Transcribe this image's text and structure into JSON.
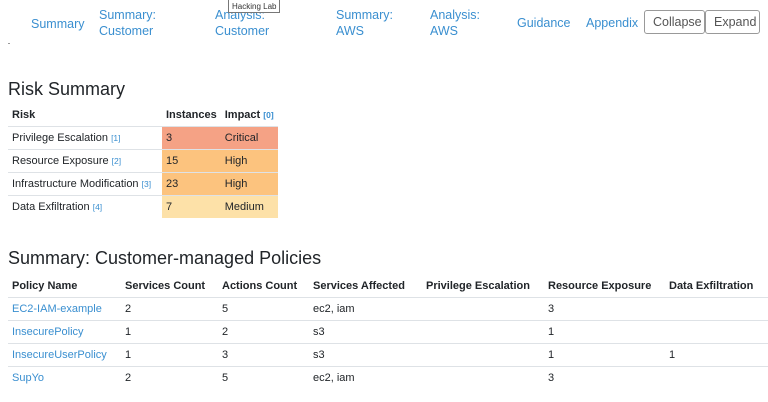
{
  "tooltip": "Hacking Lab",
  "nav": {
    "summary": "Summary",
    "summary_customer_l1": "Summary:",
    "summary_customer_l2": "Customer",
    "analysis_customer_l1": "Analysis:",
    "analysis_customer_l2": "Customer",
    "summary_aws_l1": "Summary:",
    "summary_aws_l2": "AWS",
    "analysis_aws_l1": "Analysis:",
    "analysis_aws_l2": "AWS",
    "guidance": "Guidance",
    "appendix": "Appendix",
    "collapse": "Collapse",
    "expand": "Expand"
  },
  "risk": {
    "title": "Risk Summary",
    "headers": {
      "risk": "Risk",
      "instances": "Instances",
      "impact": "Impact",
      "impact_ref": "[0]"
    },
    "rows": [
      {
        "label": "Privilege Escalation",
        "ref": "[1]",
        "instances": "3",
        "impact": "Critical"
      },
      {
        "label": "Resource Exposure",
        "ref": "[2]",
        "instances": "15",
        "impact": "High"
      },
      {
        "label": "Infrastructure Modification",
        "ref": "[3]",
        "instances": "23",
        "impact": "High"
      },
      {
        "label": "Data Exfiltration",
        "ref": "[4]",
        "instances": "7",
        "impact": "Medium"
      }
    ]
  },
  "policies": {
    "title": "Summary: Customer-managed Policies",
    "headers": {
      "name": "Policy Name",
      "services_count": "Services Count",
      "actions_count": "Actions Count",
      "services_affected": "Services Affected",
      "privilege_escalation": "Privilege Escalation",
      "resource_exposure": "Resource Exposure",
      "data_exfiltration": "Data Exfiltration"
    },
    "rows": [
      {
        "name": "EC2-IAM-example",
        "services_count": "2",
        "actions_count": "5",
        "services_affected": "ec2, iam",
        "privilege_escalation": "",
        "resource_exposure": "3",
        "data_exfiltration": ""
      },
      {
        "name": "InsecurePolicy",
        "services_count": "1",
        "actions_count": "2",
        "services_affected": "s3",
        "privilege_escalation": "",
        "resource_exposure": "1",
        "data_exfiltration": ""
      },
      {
        "name": "InsecureUserPolicy",
        "services_count": "1",
        "actions_count": "3",
        "services_affected": "s3",
        "privilege_escalation": "",
        "resource_exposure": "1",
        "data_exfiltration": "1"
      },
      {
        "name": "SupYo",
        "services_count": "2",
        "actions_count": "5",
        "services_affected": "ec2, iam",
        "privilege_escalation": "",
        "resource_exposure": "3",
        "data_exfiltration": ""
      }
    ]
  }
}
